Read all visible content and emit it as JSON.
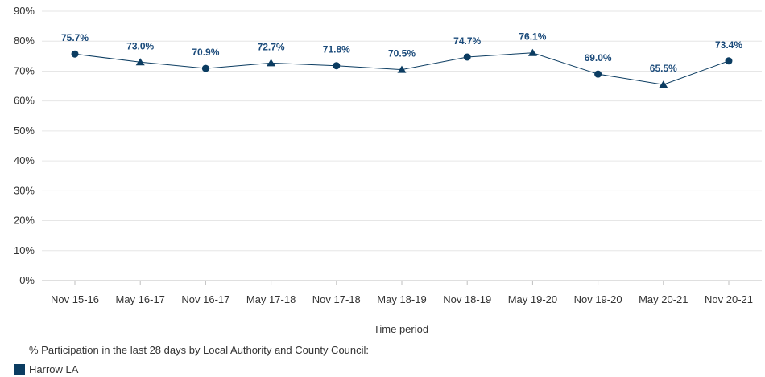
{
  "chart_data": {
    "type": "line",
    "categories": [
      "Nov 15-16",
      "May 16-17",
      "Nov 16-17",
      "May 17-18",
      "Nov 17-18",
      "May 18-19",
      "Nov 18-19",
      "May 19-20",
      "Nov 19-20",
      "May 20-21",
      "Nov 20-21"
    ],
    "series": [
      {
        "name": "Harrow LA",
        "values": [
          75.7,
          73.0,
          70.9,
          72.7,
          71.8,
          70.5,
          74.7,
          76.1,
          69.0,
          65.5,
          73.4
        ],
        "data_labels": [
          "75.7%",
          "73.0%",
          "70.9%",
          "72.7%",
          "71.8%",
          "70.5%",
          "74.7%",
          "76.1%",
          "69.0%",
          "65.5%",
          "73.4%"
        ],
        "markers": [
          "circle",
          "triangle",
          "circle",
          "triangle",
          "circle",
          "triangle",
          "circle",
          "triangle",
          "circle",
          "triangle",
          "circle"
        ],
        "color": "#0b3c61"
      }
    ],
    "xlabel": "Time period",
    "ylabel": "",
    "ylim": [
      0,
      90
    ],
    "y_ticks": [
      "0%",
      "10%",
      "20%",
      "30%",
      "40%",
      "50%",
      "60%",
      "70%",
      "80%",
      "90%"
    ],
    "grid": true,
    "legend_title": "% Participation in the last 28 days by Local Authority and County Council:",
    "legend_position": "bottom-left"
  }
}
